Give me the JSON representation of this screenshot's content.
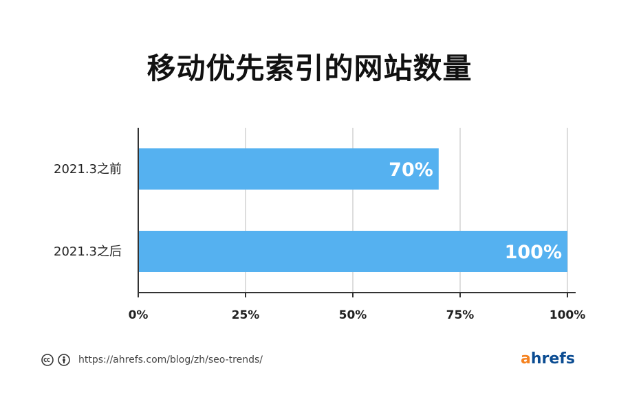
{
  "title": "移动优先索引的网站数量",
  "chart_data": {
    "type": "bar",
    "orientation": "horizontal",
    "title": "移动优先索引的网站数量",
    "categories": [
      "2021.3之前",
      "2021.3之后"
    ],
    "values": [
      70,
      100
    ],
    "data_labels": [
      "70%",
      "100%"
    ],
    "xlim": [
      0,
      100
    ],
    "x_ticks": [
      0,
      25,
      50,
      75,
      100
    ],
    "x_tick_labels": [
      "0%",
      "25%",
      "50%",
      "75%",
      "100%"
    ],
    "xlabel": "",
    "ylabel": "",
    "grid": true,
    "bar_color": "#55b1f0",
    "grid_color": "#dddddd",
    "axis_color": "#333333"
  },
  "footer": {
    "url": "https://ahrefs.com/blog/zh/seo-trends/",
    "license_icons": [
      "cc-icon",
      "attribution-icon"
    ]
  },
  "brand": {
    "logo_first": "a",
    "logo_rest": "hrefs",
    "accent_color": "#f5821f",
    "primary_color": "#0b4c92"
  }
}
